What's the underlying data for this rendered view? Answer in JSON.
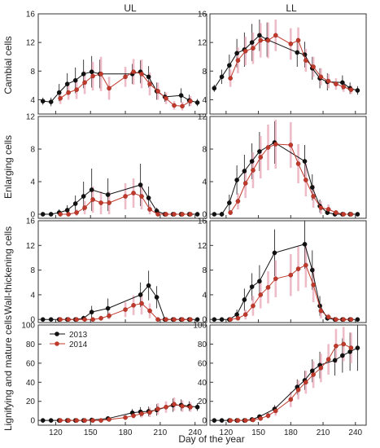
{
  "figure": {
    "column_titles": [
      "UL",
      "LL"
    ],
    "xlabel": "Day of the year",
    "row_ylabels": [
      "Cambial cells",
      "Enlarging cells",
      "Wall-thickening cells",
      "Lignifying and mature cells"
    ],
    "legend": [
      {
        "label": "2013",
        "color": "#111111"
      },
      {
        "label": "2014",
        "color": "#c0392b"
      }
    ],
    "x_ticks": [
      120,
      150,
      180,
      210,
      240
    ],
    "xlim": [
      105,
      250
    ]
  },
  "chart_data": [
    {
      "type": "line",
      "panel": "UL / Cambial cells",
      "ylim": [
        2,
        16
      ],
      "y_ticks": [
        4,
        8,
        12,
        16
      ],
      "series": [
        {
          "name": "2013",
          "color": "#111111",
          "x": [
            109,
            116,
            123,
            130,
            137,
            144,
            151,
            158,
            186,
            193,
            200,
            207,
            214,
            228,
            235,
            242
          ],
          "y": [
            3.8,
            3.7,
            5.0,
            6.2,
            6.7,
            7.6,
            7.9,
            7.6,
            7.6,
            7.9,
            7.2,
            5.2,
            4.4,
            4.6,
            3.9,
            3.6
          ],
          "err": [
            0.5,
            0.6,
            1.2,
            1.5,
            1.8,
            2.0,
            2.2,
            2.0,
            1.4,
            1.6,
            1.5,
            1.2,
            0.7,
            1.0,
            0.8,
            0.5
          ]
        },
        {
          "name": "2014",
          "color": "#c0392b",
          "x": [
            124,
            131,
            138,
            145,
            152,
            159,
            166,
            180,
            187,
            194,
            201,
            208,
            215,
            222,
            229,
            236
          ],
          "y": [
            4.2,
            5.0,
            5.4,
            6.4,
            7.3,
            7.6,
            5.6,
            7.2,
            7.9,
            7.6,
            6.2,
            5.2,
            4.2,
            3.2,
            3.1,
            3.8
          ],
          "err": [
            0.8,
            1.0,
            1.3,
            1.6,
            2.0,
            2.4,
            1.6,
            1.4,
            1.8,
            2.0,
            1.6,
            1.2,
            0.8,
            0.6,
            0.6,
            0.7
          ]
        }
      ]
    },
    {
      "type": "line",
      "panel": "LL / Cambial cells",
      "ylim": [
        2,
        16
      ],
      "y_ticks": [
        4,
        8,
        12,
        16
      ],
      "series": [
        {
          "name": "2013",
          "color": "#111111",
          "x": [
            109,
            116,
            123,
            130,
            137,
            144,
            151,
            158,
            186,
            193,
            200,
            207,
            214,
            228,
            235,
            242
          ],
          "y": [
            5.6,
            7.2,
            8.8,
            10.5,
            11.0,
            12.0,
            13.0,
            12.4,
            10.6,
            10.3,
            8.4,
            7.0,
            6.5,
            6.4,
            5.6,
            5.3
          ],
          "err": [
            0.5,
            1.0,
            1.5,
            2.0,
            2.4,
            2.6,
            2.2,
            2.4,
            2.0,
            1.8,
            1.6,
            1.4,
            1.2,
            1.0,
            0.8,
            0.6
          ]
        },
        {
          "name": "2014",
          "color": "#c0392b",
          "x": [
            124,
            131,
            138,
            145,
            152,
            159,
            166,
            180,
            187,
            194,
            201,
            208,
            215,
            222,
            229,
            236
          ],
          "y": [
            7.0,
            9.5,
            10.8,
            11.2,
            12.3,
            12.3,
            13.0,
            11.8,
            12.3,
            9.5,
            8.6,
            7.2,
            6.6,
            6.2,
            5.8,
            5.4
          ],
          "err": [
            1.2,
            1.8,
            2.0,
            2.2,
            2.4,
            2.5,
            2.2,
            2.2,
            1.8,
            1.6,
            1.4,
            1.2,
            1.0,
            0.8,
            0.7,
            0.6
          ]
        }
      ]
    },
    {
      "type": "line",
      "panel": "UL / Enlarging cells",
      "ylim": [
        -0.5,
        12
      ],
      "y_ticks": [
        0,
        4,
        8,
        12
      ],
      "series": [
        {
          "name": "2013",
          "color": "#111111",
          "x": [
            109,
            116,
            123,
            130,
            137,
            144,
            151,
            165,
            193,
            200,
            207,
            214,
            221,
            228,
            235,
            242
          ],
          "y": [
            0,
            0,
            0.2,
            0.5,
            1.3,
            2.2,
            3.0,
            2.4,
            3.6,
            2.0,
            0.4,
            0,
            0,
            0,
            0,
            0
          ],
          "err": [
            0.1,
            0.1,
            0.4,
            0.6,
            1.0,
            1.8,
            2.6,
            2.0,
            2.6,
            1.4,
            0.4,
            0.1,
            0.1,
            0.1,
            0.1,
            0.1
          ]
        },
        {
          "name": "2014",
          "color": "#c0392b",
          "x": [
            124,
            131,
            138,
            145,
            152,
            159,
            166,
            180,
            187,
            194,
            201,
            208,
            215,
            222,
            229,
            236
          ],
          "y": [
            0,
            0,
            0.2,
            0.8,
            1.8,
            1.4,
            1.4,
            2.2,
            2.6,
            2.2,
            0.6,
            0,
            0,
            0,
            0,
            0
          ],
          "err": [
            0.1,
            0.2,
            0.4,
            0.8,
            1.6,
            1.4,
            1.4,
            1.6,
            1.8,
            1.6,
            0.6,
            0.1,
            0.1,
            0.1,
            0.1,
            0.1
          ]
        }
      ]
    },
    {
      "type": "line",
      "panel": "LL / Enlarging cells",
      "ylim": [
        -0.5,
        12
      ],
      "y_ticks": [
        0,
        4,
        8,
        12
      ],
      "series": [
        {
          "name": "2013",
          "color": "#111111",
          "x": [
            109,
            116,
            123,
            130,
            137,
            144,
            151,
            165,
            193,
            200,
            207,
            214,
            221,
            228,
            235,
            242
          ],
          "y": [
            0,
            0,
            1.4,
            4.2,
            5.3,
            6.5,
            7.7,
            8.8,
            6.5,
            3.3,
            1.0,
            0.2,
            0,
            0,
            0,
            0
          ],
          "err": [
            0.1,
            0.3,
            1.0,
            1.8,
            2.0,
            2.2,
            2.4,
            2.6,
            2.0,
            1.6,
            0.8,
            0.3,
            0.1,
            0.1,
            0.1,
            0.1
          ]
        },
        {
          "name": "2014",
          "color": "#c0392b",
          "x": [
            124,
            131,
            138,
            145,
            152,
            159,
            166,
            180,
            187,
            194,
            201,
            208,
            215,
            222,
            229,
            236
          ],
          "y": [
            0.2,
            1.6,
            3.8,
            5.4,
            7.0,
            8.2,
            8.6,
            8.5,
            6.2,
            4.2,
            2.2,
            0.8,
            0.6,
            0.2,
            0,
            0
          ],
          "err": [
            0.3,
            1.0,
            1.8,
            2.2,
            2.6,
            2.8,
            3.0,
            2.8,
            2.4,
            2.0,
            1.4,
            0.8,
            0.6,
            0.3,
            0.1,
            0.1
          ]
        }
      ]
    },
    {
      "type": "line",
      "panel": "UL / Wall-thickening cells",
      "ylim": [
        -0.5,
        16
      ],
      "y_ticks": [
        0,
        4,
        8,
        12,
        16
      ],
      "series": [
        {
          "name": "2013",
          "color": "#111111",
          "x": [
            109,
            116,
            123,
            130,
            137,
            144,
            151,
            165,
            193,
            200,
            207,
            214,
            221,
            228,
            235,
            242
          ],
          "y": [
            0,
            0,
            0,
            0,
            0,
            0.2,
            1.2,
            1.8,
            4.0,
            5.5,
            3.6,
            0,
            0,
            0,
            0,
            0
          ],
          "err": [
            0.1,
            0.1,
            0.1,
            0.1,
            0.1,
            0.4,
            1.0,
            1.6,
            2.0,
            2.4,
            1.8,
            0.2,
            0.1,
            0.1,
            0.1,
            0.1
          ]
        },
        {
          "name": "2014",
          "color": "#c0392b",
          "x": [
            124,
            131,
            138,
            145,
            152,
            159,
            166,
            180,
            187,
            194,
            201,
            208,
            215,
            222,
            229,
            236
          ],
          "y": [
            0,
            0,
            0,
            0,
            0,
            0.2,
            0.6,
            1.6,
            2.3,
            2.6,
            1.4,
            0,
            0,
            0,
            0,
            0
          ],
          "err": [
            0.1,
            0.1,
            0.1,
            0.1,
            0.1,
            0.4,
            0.6,
            1.2,
            1.6,
            1.8,
            1.2,
            0.2,
            0.1,
            0.1,
            0.1,
            0.1
          ]
        }
      ]
    },
    {
      "type": "line",
      "panel": "LL / Wall-thickening cells",
      "ylim": [
        -0.5,
        16
      ],
      "y_ticks": [
        0,
        4,
        8,
        12,
        16
      ],
      "series": [
        {
          "name": "2013",
          "color": "#111111",
          "x": [
            109,
            116,
            123,
            130,
            137,
            144,
            151,
            165,
            193,
            200,
            207,
            214,
            221,
            228,
            235,
            242
          ],
          "y": [
            0,
            0,
            0,
            0.8,
            3.2,
            5.3,
            6.2,
            10.8,
            12.2,
            8.0,
            2.2,
            0.2,
            0,
            0,
            0,
            0
          ],
          "err": [
            0.1,
            0.1,
            0.2,
            0.8,
            1.8,
            2.2,
            2.6,
            3.8,
            4.0,
            3.2,
            1.6,
            0.4,
            0.1,
            0.1,
            0.1,
            0.1
          ]
        },
        {
          "name": "2014",
          "color": "#c0392b",
          "x": [
            124,
            131,
            138,
            145,
            152,
            159,
            166,
            180,
            187,
            194,
            201,
            208,
            215,
            222,
            229,
            236
          ],
          "y": [
            0,
            0.2,
            0.8,
            2.2,
            4.0,
            5.2,
            6.6,
            7.2,
            8.2,
            8.8,
            5.6,
            1.4,
            0.4,
            0,
            0,
            0
          ],
          "err": [
            0.1,
            0.3,
            0.8,
            1.6,
            2.2,
            2.6,
            3.0,
            3.4,
            3.6,
            3.6,
            2.8,
            1.2,
            0.5,
            0.1,
            0.1,
            0.1
          ]
        }
      ]
    },
    {
      "type": "line",
      "panel": "UL / Lignifying and mature cells",
      "ylim": [
        -5,
        100
      ],
      "y_ticks": [
        0,
        20,
        40,
        60,
        80,
        100
      ],
      "series": [
        {
          "name": "2013",
          "color": "#111111",
          "x": [
            109,
            116,
            123,
            130,
            137,
            144,
            151,
            165,
            186,
            193,
            200,
            207,
            221,
            228,
            235,
            242
          ],
          "y": [
            0,
            0,
            0,
            0,
            0,
            0,
            0.5,
            2.0,
            8.0,
            9.0,
            9.5,
            11.0,
            16.0,
            16.0,
            15.0,
            14.0
          ],
          "err": [
            0.2,
            0.2,
            0.2,
            0.2,
            0.2,
            0.3,
            0.6,
            2.0,
            4.0,
            5.0,
            5.0,
            6.0,
            7.0,
            6.0,
            5.0,
            4.0
          ]
        },
        {
          "name": "2014",
          "color": "#c0392b",
          "x": [
            124,
            131,
            138,
            145,
            152,
            159,
            166,
            180,
            187,
            194,
            201,
            208,
            215,
            222,
            229,
            236
          ],
          "y": [
            0,
            0,
            0,
            0,
            0,
            0,
            1.0,
            3.0,
            5.0,
            7.0,
            8.5,
            12.0,
            14.0,
            17.0,
            15.0,
            14.0
          ],
          "err": [
            0.2,
            0.2,
            0.2,
            0.2,
            0.2,
            0.3,
            1.0,
            2.0,
            3.0,
            4.0,
            5.0,
            6.0,
            6.0,
            7.0,
            6.0,
            5.0
          ]
        }
      ]
    },
    {
      "type": "line",
      "panel": "LL / Lignifying and mature cells",
      "ylim": [
        -5,
        100
      ],
      "y_ticks": [
        0,
        20,
        40,
        60,
        80,
        100
      ],
      "series": [
        {
          "name": "2013",
          "color": "#111111",
          "x": [
            109,
            116,
            123,
            130,
            137,
            144,
            151,
            165,
            186,
            193,
            200,
            207,
            221,
            228,
            235,
            242
          ],
          "y": [
            0,
            0,
            0,
            0,
            0,
            1.0,
            4.0,
            12.0,
            35.0,
            42.0,
            52.0,
            58.0,
            63.0,
            68.0,
            72.0,
            76.0
          ],
          "err": [
            0.2,
            0.2,
            0.2,
            0.2,
            0.4,
            1.0,
            2.0,
            4.0,
            8.0,
            10.0,
            12.0,
            14.0,
            16.0,
            18.0,
            20.0,
            24.0
          ]
        },
        {
          "name": "2014",
          "color": "#c0392b",
          "x": [
            124,
            131,
            138,
            145,
            152,
            159,
            166,
            180,
            187,
            194,
            201,
            208,
            215,
            222,
            229,
            236
          ],
          "y": [
            0,
            0,
            0,
            0.5,
            2.0,
            5.0,
            10.0,
            22.0,
            32.0,
            40.0,
            48.0,
            55.0,
            64.0,
            78.0,
            80.0,
            76.0
          ],
          "err": [
            0.2,
            0.2,
            0.3,
            0.6,
            1.5,
            3.0,
            5.0,
            8.0,
            10.0,
            12.0,
            14.0,
            15.0,
            16.0,
            18.0,
            18.0,
            16.0
          ]
        }
      ]
    }
  ]
}
